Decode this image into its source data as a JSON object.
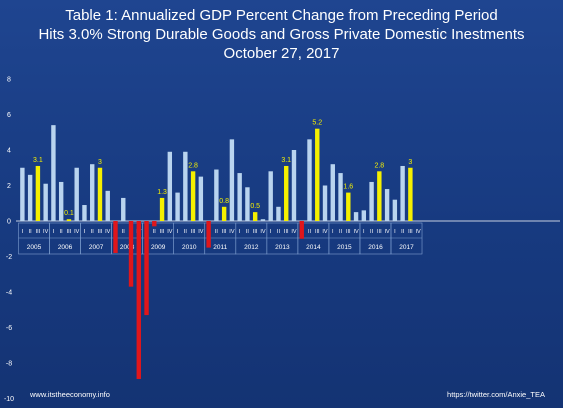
{
  "header": {
    "title_line1": "Table 1: Annualized GDP Percent Change from Preceding Period",
    "title_line2": "Hits 3.0% Strong Durable Goods and Gross Private Domestic Inestments",
    "title_line3": "October 27, 2017"
  },
  "footer": {
    "left": "www.itstheeconomy.info",
    "right": "https://twitter.com/Anxie_TEA"
  },
  "colors": {
    "background": "#1a3c80",
    "positive": "#b9d4ef",
    "highlight": "#f5f000",
    "negative": "#e0161b",
    "text": "#ffffff"
  },
  "chart_data": {
    "type": "bar",
    "ylim": [
      -10,
      8
    ],
    "yticks": [
      -10,
      -8,
      -6,
      -4,
      -2,
      0,
      2,
      4,
      6,
      8
    ],
    "grid": false,
    "years": [
      "2005",
      "2006",
      "2007",
      "2008",
      "2009",
      "2010",
      "2011",
      "2012",
      "2013",
      "2014",
      "2015",
      "2016",
      "2017"
    ],
    "quarter_labels": [
      "I",
      "II",
      "III",
      "IV"
    ],
    "values": [
      3.0,
      2.6,
      3.1,
      2.1,
      5.4,
      2.2,
      0.1,
      3.0,
      0.9,
      3.2,
      3.0,
      1.7,
      -1.8,
      1.3,
      -3.7,
      -8.9,
      -5.3,
      -0.3,
      1.3,
      3.9,
      1.6,
      3.9,
      2.8,
      2.5,
      -1.5,
      2.9,
      0.8,
      4.6,
      2.7,
      1.9,
      0.5,
      0.1,
      2.8,
      0.8,
      3.1,
      4.0,
      -1.0,
      4.6,
      5.2,
      2.0,
      3.2,
      2.7,
      1.6,
      0.5,
      0.6,
      2.2,
      2.8,
      1.8,
      1.2,
      3.1,
      3.0
    ],
    "highlight_labels": [
      {
        "index": 2,
        "label": "3.1"
      },
      {
        "index": 6,
        "label": "0.1"
      },
      {
        "index": 10,
        "label": "3"
      },
      {
        "index": 18,
        "label": "1.3"
      },
      {
        "index": 22,
        "label": "2.8"
      },
      {
        "index": 26,
        "label": "0.8"
      },
      {
        "index": 30,
        "label": "0.5"
      },
      {
        "index": 34,
        "label": "3.1"
      },
      {
        "index": 38,
        "label": "5.2"
      },
      {
        "index": 42,
        "label": "1.6"
      },
      {
        "index": 46,
        "label": "2.8"
      },
      {
        "index": 50,
        "label": "3"
      }
    ]
  }
}
